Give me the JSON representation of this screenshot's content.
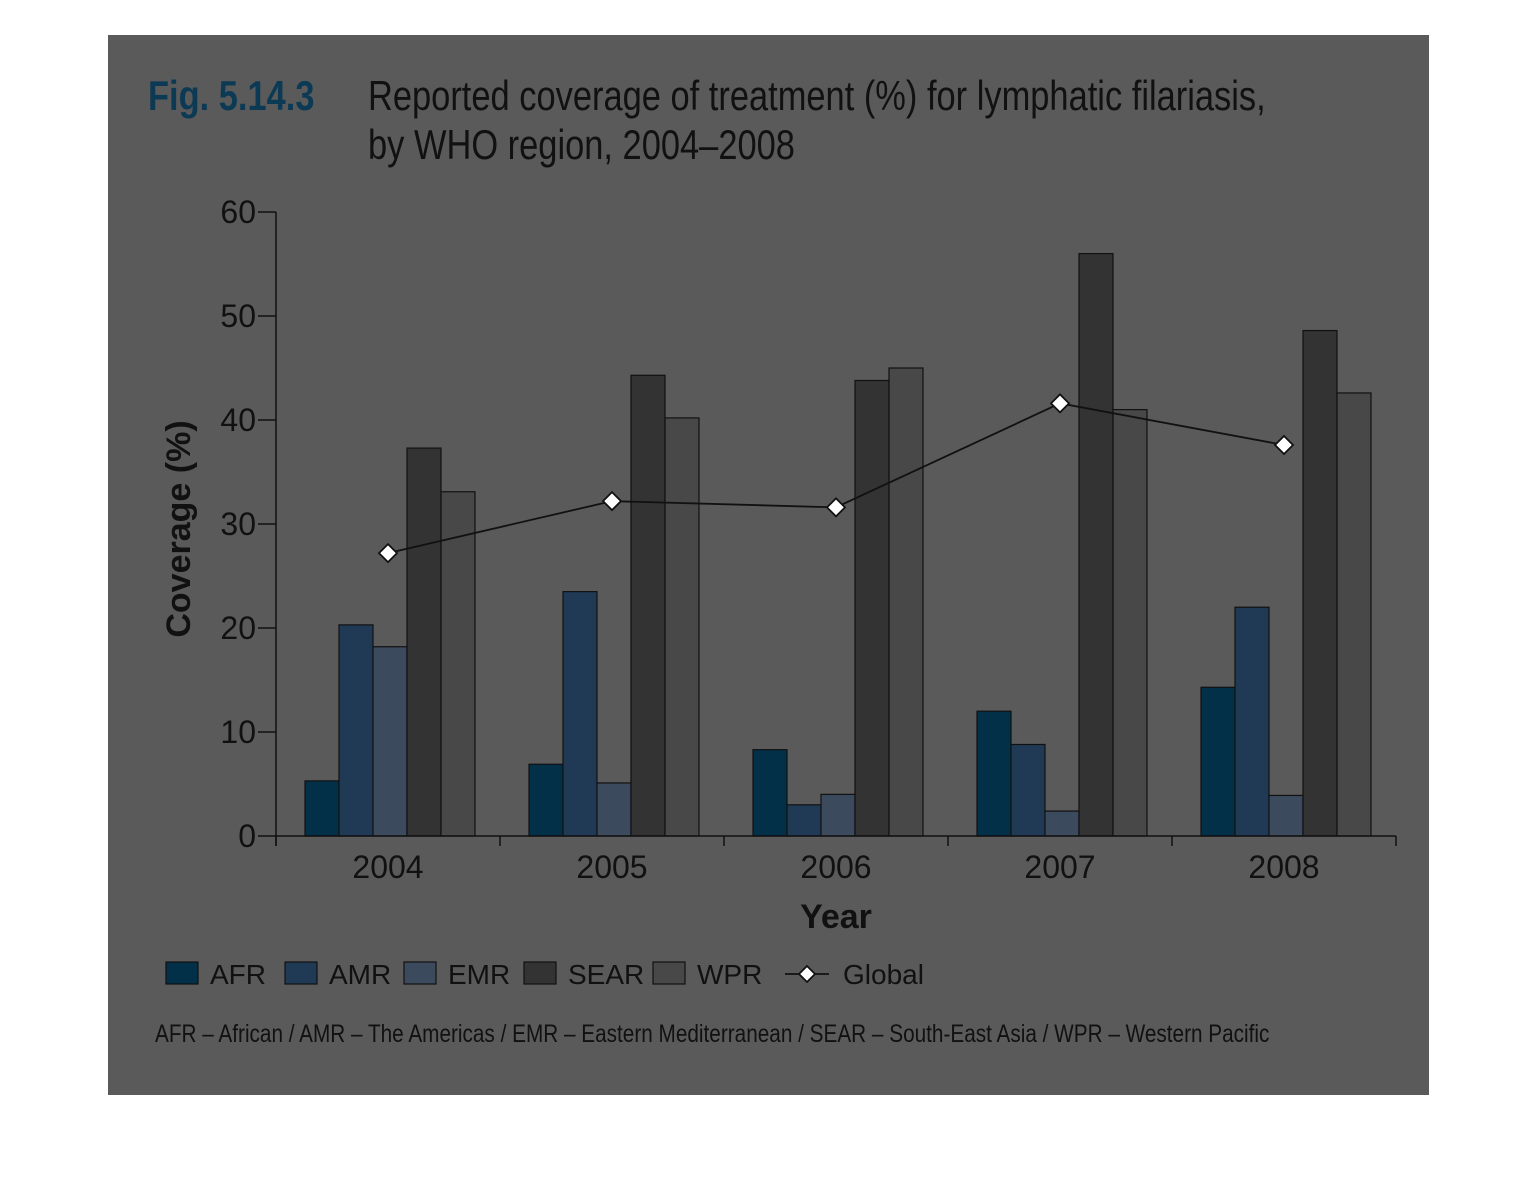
{
  "figure": {
    "label": "Fig. 5.14.3",
    "title_line1": "Reported coverage of treatment (%) for lymphatic filariasis,",
    "title_line2": "by WHO region, 2004–2008",
    "footnote": "AFR – African / AMR – The Americas / EMR – Eastern Mediterranean / SEAR – South-East Asia / WPR – Western Pacific"
  },
  "colors": {
    "panel_bg": "#5a5a5a",
    "AFR": "#023049",
    "AMR": "#203a55",
    "EMR": "#3b4a5c",
    "SEAR": "#333333",
    "WPR": "#484848",
    "Global": "#111111"
  },
  "chart_data": {
    "type": "bar",
    "title": "Reported coverage of treatment (%) for lymphatic filariasis, by WHO region, 2004–2008",
    "xlabel": "Year",
    "ylabel": "Coverage (%)",
    "ylim": [
      0,
      60
    ],
    "yticks": [
      0,
      10,
      20,
      30,
      40,
      50,
      60
    ],
    "grid": false,
    "legend_position": "bottom",
    "categories": [
      "2004",
      "2005",
      "2006",
      "2007",
      "2008"
    ],
    "series": [
      {
        "name": "AFR",
        "type": "bar",
        "values": [
          5.3,
          6.9,
          8.3,
          12.0,
          14.3
        ]
      },
      {
        "name": "AMR",
        "type": "bar",
        "values": [
          20.3,
          23.5,
          3.0,
          8.8,
          22.0
        ]
      },
      {
        "name": "EMR",
        "type": "bar",
        "values": [
          18.2,
          5.1,
          4.0,
          2.4,
          3.9
        ]
      },
      {
        "name": "SEAR",
        "type": "bar",
        "values": [
          37.3,
          44.3,
          43.8,
          56.0,
          48.6
        ]
      },
      {
        "name": "WPR",
        "type": "bar",
        "values": [
          33.1,
          40.2,
          45.0,
          41.0,
          42.6
        ]
      },
      {
        "name": "Global",
        "type": "line",
        "values": [
          27.2,
          32.2,
          31.6,
          41.6,
          37.6
        ]
      }
    ]
  }
}
